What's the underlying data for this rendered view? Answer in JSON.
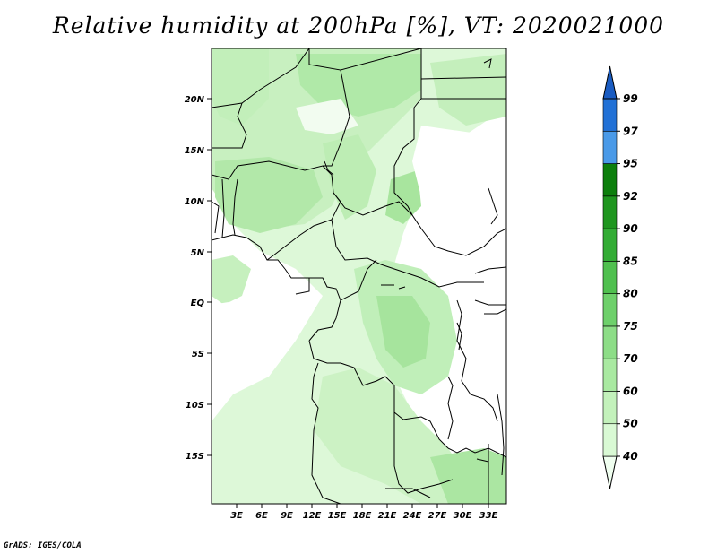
{
  "title": "Relative humidity at 200hPa [%], VT: 2020021000",
  "footer": "GrADS: IGES/COLA",
  "lat_labels": [
    "20N",
    "15N",
    "10N",
    "5N",
    "EQ",
    "5S",
    "10S",
    "15S"
  ],
  "lon_labels": [
    "3E",
    "6E",
    "9E",
    "12E",
    "15E",
    "18E",
    "21E",
    "24E",
    "27E",
    "30E",
    "33E"
  ],
  "legend": {
    "levels": [
      "40",
      "50",
      "60",
      "70",
      "75",
      "80",
      "85",
      "90",
      "92",
      "95",
      "97",
      "99"
    ],
    "colors": [
      "#f0fff0",
      "#d9f9d4",
      "#c3f1bb",
      "#a9e9a1",
      "#8ddd87",
      "#6ed06b",
      "#50c04f",
      "#33ac35",
      "#1f961f",
      "#0d7f0d",
      "#4a9ae8",
      "#2271d6",
      "#1a5cc2"
    ]
  },
  "map_extent": {
    "lon": [
      0,
      35
    ],
    "lat": [
      -20,
      24
    ]
  }
}
